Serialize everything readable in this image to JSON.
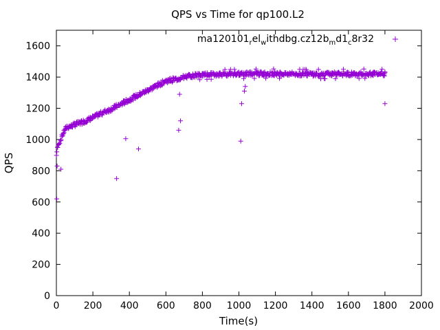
{
  "chart_data": {
    "type": "scatter",
    "title": "QPS vs Time for qp100.L2",
    "xlabel": "Time(s)",
    "ylabel": "QPS",
    "xlim": [
      0,
      2000
    ],
    "ylim": [
      0,
      1700
    ],
    "x_ticks": [
      0,
      200,
      400,
      600,
      800,
      1000,
      1200,
      1400,
      1600,
      1800,
      2000
    ],
    "y_ticks": [
      0,
      200,
      400,
      600,
      800,
      1000,
      1200,
      1400,
      1600
    ],
    "grid": false,
    "legend_position": "top-right",
    "marker": "+",
    "series": [
      {
        "name": "ma120101_rel_withdbg.cz12b_md1_c8r32",
        "color": "#9400d3",
        "trend": [
          [
            0,
            900
          ],
          [
            5,
            940
          ],
          [
            10,
            960
          ],
          [
            20,
            990
          ],
          [
            30,
            1020
          ],
          [
            40,
            1045
          ],
          [
            50,
            1070
          ],
          [
            60,
            1080
          ],
          [
            80,
            1085
          ],
          [
            100,
            1095
          ],
          [
            150,
            1115
          ],
          [
            200,
            1140
          ],
          [
            250,
            1170
          ],
          [
            300,
            1195
          ],
          [
            350,
            1225
          ],
          [
            400,
            1255
          ],
          [
            450,
            1285
          ],
          [
            500,
            1315
          ],
          [
            550,
            1345
          ],
          [
            600,
            1375
          ],
          [
            650,
            1385
          ],
          [
            700,
            1400
          ],
          [
            750,
            1410
          ],
          [
            800,
            1415
          ],
          [
            900,
            1418
          ],
          [
            1000,
            1420
          ],
          [
            1100,
            1422
          ],
          [
            1200,
            1422
          ],
          [
            1300,
            1420
          ],
          [
            1400,
            1418
          ],
          [
            1500,
            1420
          ],
          [
            1600,
            1420
          ],
          [
            1700,
            1422
          ],
          [
            1800,
            1420
          ]
        ],
        "outliers": [
          [
            2,
            620
          ],
          [
            4,
            830
          ],
          [
            25,
            810
          ],
          [
            330,
            750
          ],
          [
            380,
            1005
          ],
          [
            450,
            940
          ],
          [
            670,
            1060
          ],
          [
            675,
            1290
          ],
          [
            680,
            1120
          ],
          [
            1010,
            990
          ],
          [
            1015,
            1230
          ],
          [
            1030,
            1310
          ],
          [
            1035,
            1340
          ],
          [
            1800,
            1230
          ]
        ]
      }
    ]
  }
}
